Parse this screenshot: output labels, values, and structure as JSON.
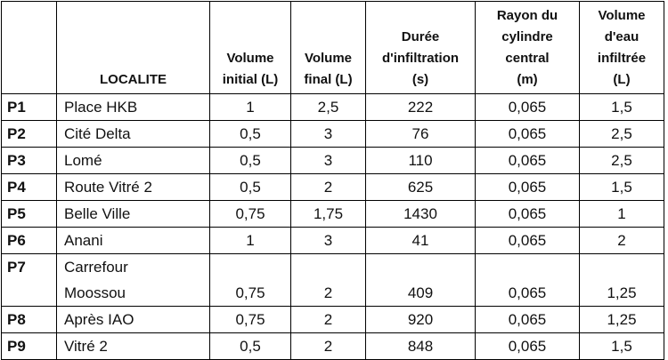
{
  "table": {
    "headers": [
      [
        "LOCALITE"
      ],
      [
        "Volume",
        "initial (L)"
      ],
      [
        "Volume",
        "final (L)"
      ],
      [
        "Durée",
        "d'infiltration",
        "(s)"
      ],
      [
        "Rayon du",
        "cylindre",
        "central",
        "(m)"
      ],
      [
        "Volume",
        "d'eau",
        "infiltrée",
        "(L)"
      ]
    ],
    "rows": [
      {
        "id": "P1",
        "localite": [
          "Place HKB"
        ],
        "values": [
          "1",
          "2,5",
          "222",
          "0,065",
          "1,5"
        ]
      },
      {
        "id": "P2",
        "localite": [
          "Cité Delta"
        ],
        "values": [
          "0,5",
          "3",
          "76",
          "0,065",
          "2,5"
        ]
      },
      {
        "id": "P3",
        "localite": [
          "Lomé"
        ],
        "values": [
          "0,5",
          "3",
          "110",
          "0,065",
          "2,5"
        ]
      },
      {
        "id": "P4",
        "localite": [
          "Route Vitré 2"
        ],
        "values": [
          "0,5",
          "2",
          "625",
          "0,065",
          "1,5"
        ]
      },
      {
        "id": "P5",
        "localite": [
          "Belle Ville"
        ],
        "values": [
          "0,75",
          "1,75",
          "1430",
          "0,065",
          "1"
        ]
      },
      {
        "id": "P6",
        "localite": [
          "Anani"
        ],
        "values": [
          "1",
          "3",
          "41",
          "0,065",
          "2"
        ]
      },
      {
        "id": "P7",
        "localite": [
          "Carrefour",
          "Moossou"
        ],
        "values": [
          "0,75",
          "2",
          "409",
          "0,065",
          "1,25"
        ]
      },
      {
        "id": "P8",
        "localite": [
          "Après IAO"
        ],
        "values": [
          "0,75",
          "2",
          "920",
          "0,065",
          "1,25"
        ]
      },
      {
        "id": "P9",
        "localite": [
          "Vitré 2"
        ],
        "values": [
          "0,5",
          "2",
          "848",
          "0,065",
          "1,5"
        ]
      }
    ]
  }
}
